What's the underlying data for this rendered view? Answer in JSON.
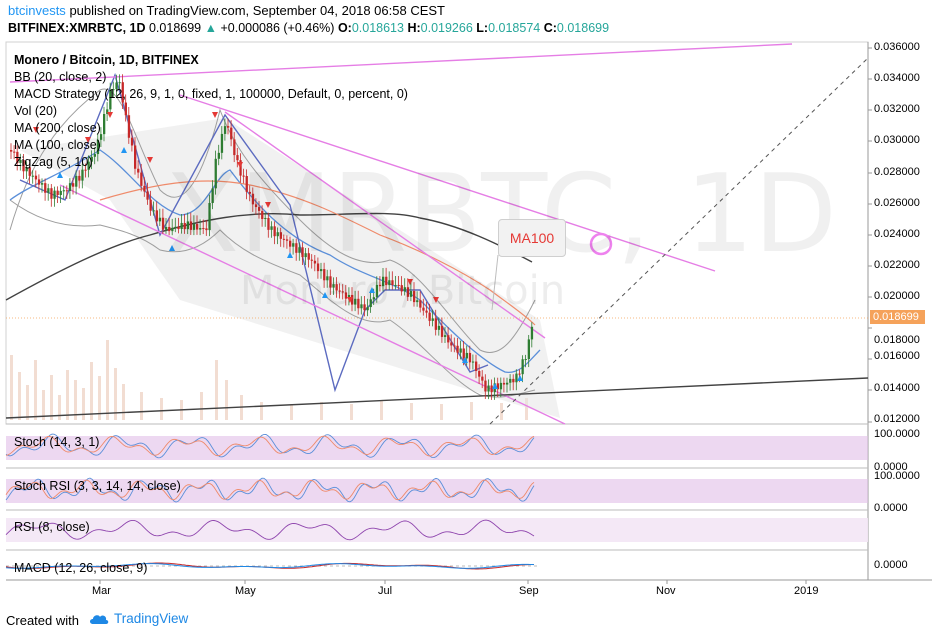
{
  "header": {
    "author": "btcinvests",
    "published_text": "published on TradingView.com, September 04, 2018 06:58 CEST",
    "symbol": "BITFINEX:XMRBTC, 1D",
    "last": "0.018699",
    "change_arrow": "▲",
    "change": "+0.000086 (+0.46%)",
    "open_label": "O:",
    "open": "0.018613",
    "high_label": "H:",
    "high": "0.019266",
    "low_label": "L:",
    "low": "0.018574",
    "close_label": "C:",
    "close": "0.018699"
  },
  "legend": {
    "title": "Monero / Bitcoin, 1D, BITFINEX",
    "items": [
      "BB (20, close, 2)",
      "MACD Strategy (12, 26, 9, 1, 0, fixed, 1, 100000, Default, 0, percent, 0)",
      "Vol (20)",
      "MA (200, close)",
      "MA (100, close)",
      "ZigZag (5, 10)"
    ]
  },
  "watermark": {
    "symbol": "XMRBTC, 1D",
    "name": "Monero / Bitcoin"
  },
  "annotation": {
    "ma_label": "MA100"
  },
  "price_axis": {
    "ticks": [
      "0.036000",
      "0.034000",
      "0.032000",
      "0.030000",
      "0.028000",
      "0.026000",
      "0.024000",
      "0.022000",
      "0.020000",
      "0.018000",
      "0.016000",
      "0.014000",
      "0.012000"
    ],
    "current": "0.018699"
  },
  "panes": {
    "stoch": {
      "label": "Stoch (14, 3, 1)",
      "ticks": [
        "100.0000",
        "0.0000"
      ]
    },
    "stoch_rsi": {
      "label": "Stoch RSI (3, 3, 14, 14, close)",
      "ticks": [
        "100.0000",
        "0.0000"
      ]
    },
    "rsi": {
      "label": "RSI (8, close)"
    },
    "macd": {
      "label": "MACD (12, 26, close, 9)",
      "ticks": [
        "0.0000"
      ]
    }
  },
  "time_axis": {
    "labels": [
      "Mar",
      "May",
      "Jul",
      "Sep",
      "Nov",
      "2019"
    ]
  },
  "footer": {
    "created_with": "Created with",
    "brand": "TradingView"
  },
  "colors": {
    "bull": "#26a69a",
    "bear": "#ef5350",
    "candle_up": "#2e7d32",
    "candle_down": "#c62828",
    "trend": "#e57ee5",
    "accent": "#2196F3",
    "price_tag": "#f5a25a"
  }
}
